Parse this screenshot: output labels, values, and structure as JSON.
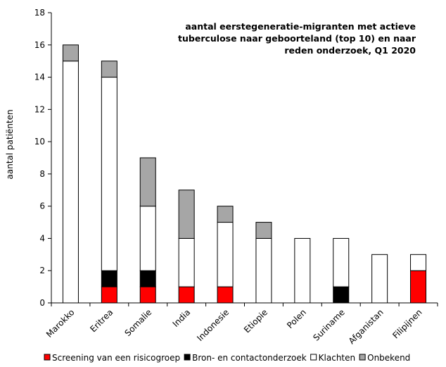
{
  "chart_data": {
    "type": "bar",
    "stacked": true,
    "title_lines": [
      "aantal eerstegeneratie-migranten met actieve",
      "tuberculose naar geboorteland (top 10) en naar",
      "reden onderzoek, Q1 2020"
    ],
    "xlabel": "",
    "ylabel": "aantal patiënten",
    "ylim": [
      0,
      18
    ],
    "yticks": [
      0,
      2,
      4,
      6,
      8,
      10,
      12,
      14,
      16,
      18
    ],
    "grid": false,
    "legend_position": "bottom",
    "categories": [
      "Marokko",
      "Eritrea",
      "Somalie",
      "India",
      "Indonesie",
      "Etiopie",
      "Polen",
      "Suriname",
      "Afganistan",
      "Filipijnen"
    ],
    "series": [
      {
        "name": "Screening van een risicogroep",
        "color": "#ff0000",
        "values": [
          0,
          1,
          1,
          1,
          1,
          0,
          0,
          0,
          0,
          2
        ]
      },
      {
        "name": "Bron- en contactonderzoek",
        "color": "#000000",
        "values": [
          0,
          1,
          1,
          0,
          0,
          0,
          0,
          1,
          0,
          0
        ]
      },
      {
        "name": "Klachten",
        "color": "#ffffff",
        "values": [
          15,
          12,
          4,
          3,
          4,
          4,
          4,
          3,
          3,
          1
        ]
      },
      {
        "name": "Onbekend",
        "color": "#a6a6a6",
        "values": [
          1,
          1,
          3,
          3,
          1,
          1,
          0,
          0,
          0,
          0
        ]
      }
    ]
  }
}
